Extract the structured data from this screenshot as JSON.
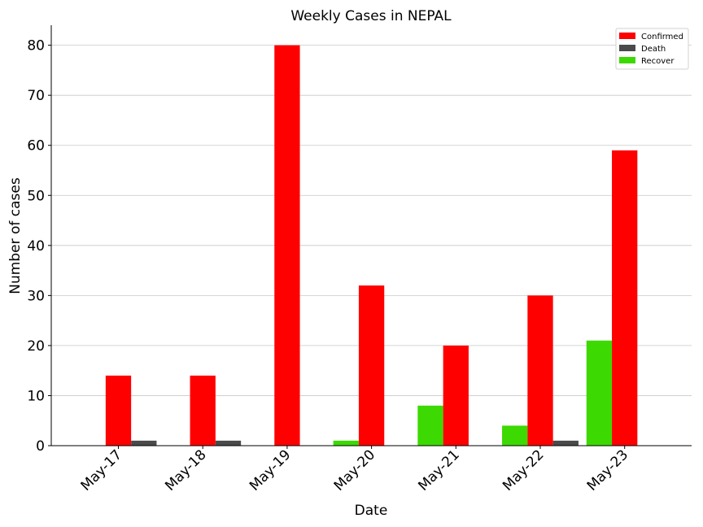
{
  "chart_data": {
    "type": "bar",
    "title": "Weekly Cases in NEPAL",
    "xlabel": "Date",
    "ylabel": "Number of cases",
    "ylim": [
      0,
      84
    ],
    "yticks": [
      0,
      10,
      20,
      30,
      40,
      50,
      60,
      70,
      80
    ],
    "grid": "horizontal",
    "legend_position": "top-right",
    "categories": [
      "May-17",
      "May-18",
      "May-19",
      "May-20",
      "May-21",
      "May-22",
      "May-23"
    ],
    "series": [
      {
        "name": "Confirmed",
        "color": "#ff0000",
        "values": [
          14,
          14,
          80,
          32,
          20,
          30,
          59
        ]
      },
      {
        "name": "Death",
        "color": "#4a4a4a",
        "values": [
          1,
          1,
          0,
          0,
          0,
          1,
          0
        ]
      },
      {
        "name": "Recover",
        "color": "#3cd902",
        "values": [
          0,
          0,
          0,
          1,
          8,
          4,
          21
        ]
      }
    ]
  }
}
